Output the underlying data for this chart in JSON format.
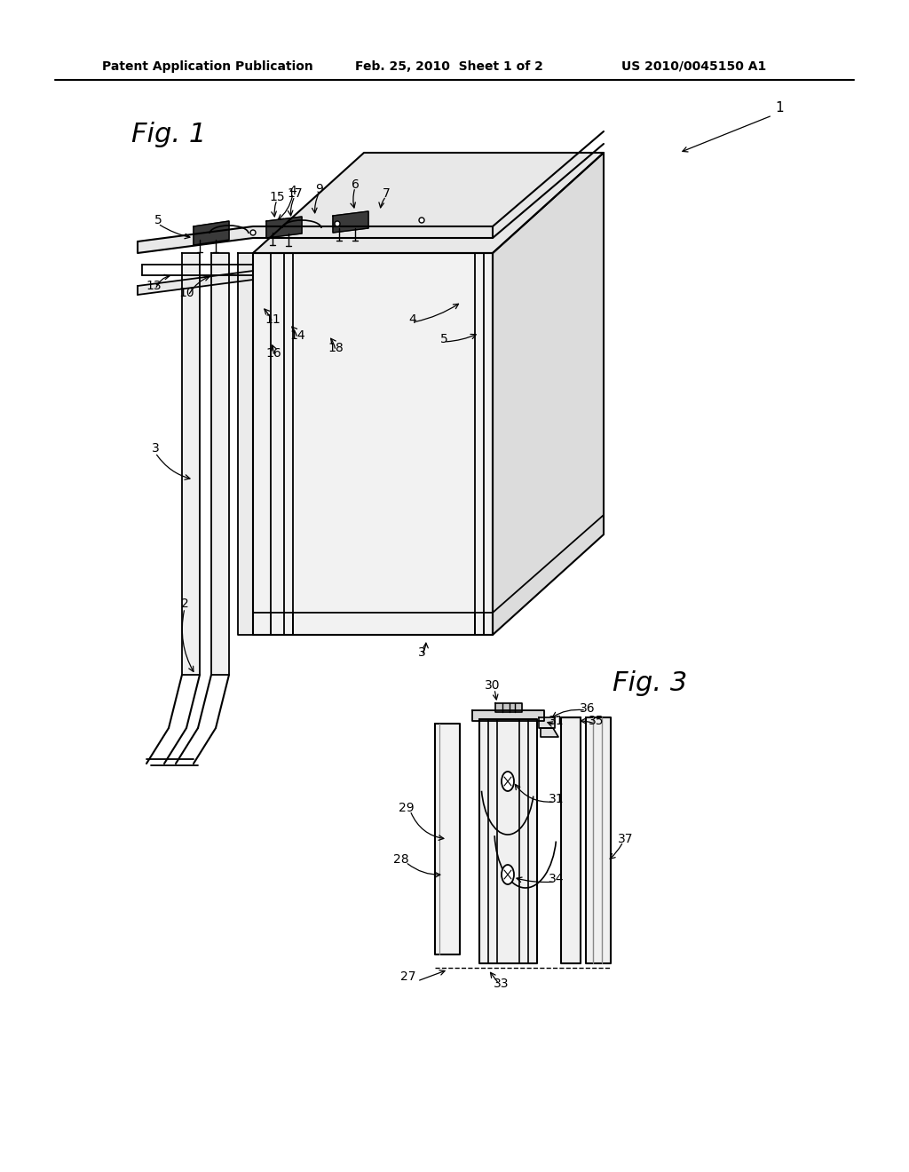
{
  "bg_color": "#ffffff",
  "header_left": "Patent Application Publication",
  "header_mid": "Feb. 25, 2010  Sheet 1 of 2",
  "header_right": "US 2010/0045150 A1",
  "fig1_label": "Fig. 1",
  "fig3_label": "Fig. 3"
}
